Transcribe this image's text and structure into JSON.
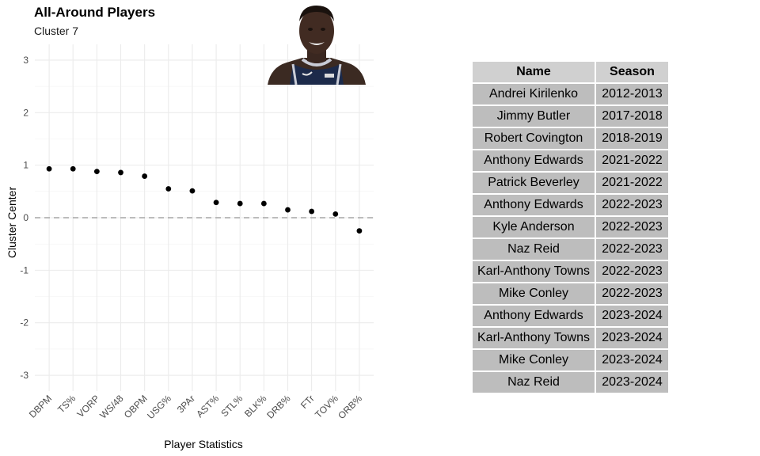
{
  "chart_data": {
    "type": "scatter",
    "title": "All-Around Players",
    "subtitle": "Cluster 7",
    "xlabel": "Player Statistics",
    "ylabel": "Cluster Center",
    "categories": [
      "DBPM",
      "TS%",
      "VORP",
      "WS/48",
      "OBPM",
      "USG%",
      "3PAr",
      "AST%",
      "STL%",
      "BLK%",
      "DRB%",
      "FTr",
      "TOV%",
      "ORB%"
    ],
    "values": [
      0.93,
      0.93,
      0.88,
      0.86,
      0.79,
      0.55,
      0.51,
      0.29,
      0.27,
      0.27,
      0.15,
      0.12,
      0.07,
      -0.25
    ],
    "ylim": [
      -3.3,
      3.3
    ],
    "yticks": [
      -3,
      -2,
      -1,
      0,
      1,
      2,
      3
    ],
    "reference_line": 0,
    "grid": true,
    "colors": {
      "point": "#000000",
      "grid": "#ebebeb",
      "reference": "#a6a6a6",
      "tick_text": "#4d4d4d"
    }
  },
  "table": {
    "headers": [
      "Name",
      "Season"
    ],
    "rows": [
      [
        "Andrei Kirilenko",
        "2012-2013"
      ],
      [
        "Jimmy Butler",
        "2017-2018"
      ],
      [
        "Robert Covington",
        "2018-2019"
      ],
      [
        "Anthony Edwards",
        "2021-2022"
      ],
      [
        "Patrick Beverley",
        "2021-2022"
      ],
      [
        "Anthony Edwards",
        "2022-2023"
      ],
      [
        "Kyle Anderson",
        "2022-2023"
      ],
      [
        "Naz Reid",
        "2022-2023"
      ],
      [
        "Karl-Anthony Towns",
        "2022-2023"
      ],
      [
        "Mike Conley",
        "2022-2023"
      ],
      [
        "Anthony Edwards",
        "2023-2024"
      ],
      [
        "Karl-Anthony Towns",
        "2023-2024"
      ],
      [
        "Mike Conley",
        "2023-2024"
      ],
      [
        "Naz Reid",
        "2023-2024"
      ]
    ],
    "colors": {
      "header_bg": "#d0d0d0",
      "cell_bg": "#bdbdbd"
    }
  }
}
